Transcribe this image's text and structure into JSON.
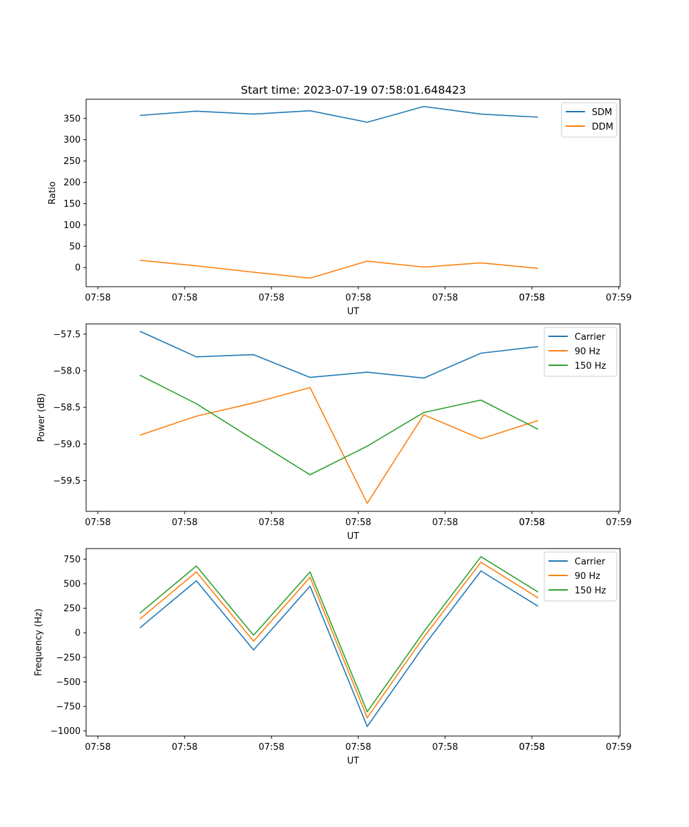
{
  "figure_title": "Start time: 2023-07-19 07:58:01.648423",
  "chart_data": [
    {
      "type": "line",
      "title": "Start time: 2023-07-19 07:58:01.648423",
      "xlabel": "UT",
      "ylabel": "Ratio",
      "x_tick_labels": [
        "07:58",
        "07:58",
        "07:58",
        "07:58",
        "07:58",
        "07:58",
        "07:58",
        "07:59"
      ],
      "y_ticks": [
        0,
        50,
        100,
        150,
        200,
        250,
        300,
        350
      ],
      "y_tick_labels": [
        "0",
        "50",
        "100",
        "150",
        "200",
        "250",
        "300",
        "350"
      ],
      "ylim": [
        -45,
        395
      ],
      "legend_position": "top-right",
      "series": [
        {
          "name": "SDM",
          "color": "#1f77b4",
          "values": [
            357,
            367,
            360,
            368,
            341,
            378,
            360,
            353
          ]
        },
        {
          "name": "DDM",
          "color": "#ff7f0e",
          "values": [
            17,
            4,
            -11,
            -25,
            15,
            1,
            11,
            -2
          ]
        }
      ]
    },
    {
      "type": "line",
      "xlabel": "UT",
      "ylabel": "Power (dB)",
      "x_tick_labels": [
        "07:58",
        "07:58",
        "07:58",
        "07:58",
        "07:58",
        "07:58",
        "07:58",
        "07:59"
      ],
      "y_ticks": [
        -57.5,
        -58.0,
        -58.5,
        -59.0,
        -59.5
      ],
      "y_tick_labels": [
        "−57.5",
        "−58.0",
        "−58.5",
        "−59.0",
        "−59.5"
      ],
      "ylim": [
        -59.92,
        -57.36
      ],
      "legend_position": "top-right",
      "series": [
        {
          "name": "Carrier",
          "color": "#1f77b4",
          "values": [
            -57.46,
            -57.81,
            -57.78,
            -58.09,
            -58.02,
            -58.1,
            -57.76,
            -57.67
          ]
        },
        {
          "name": "90 Hz",
          "color": "#ff7f0e",
          "values": [
            -58.88,
            -58.62,
            -58.44,
            -58.23,
            -59.81,
            -58.6,
            -58.93,
            -58.68
          ]
        },
        {
          "name": "150 Hz",
          "color": "#2ca02c",
          "values": [
            -58.06,
            -58.45,
            -58.94,
            -59.42,
            -59.03,
            -58.57,
            -58.4,
            -58.8
          ]
        }
      ]
    },
    {
      "type": "line",
      "xlabel": "UT",
      "ylabel": "Frequency (Hz)",
      "x_tick_labels": [
        "07:58",
        "07:58",
        "07:58",
        "07:58",
        "07:58",
        "07:58",
        "07:58",
        "07:59"
      ],
      "y_ticks": [
        750,
        500,
        250,
        0,
        -250,
        -500,
        -750,
        -1000
      ],
      "y_tick_labels": [
        "750",
        "500",
        "250",
        "0",
        "−250",
        "−500",
        "−750",
        "−1000"
      ],
      "ylim": [
        -1052,
        858
      ],
      "legend_position": "top-right",
      "series": [
        {
          "name": "Carrier",
          "color": "#1f77b4",
          "values": [
            50,
            530,
            -175,
            475,
            -955,
            -135,
            630,
            270
          ]
        },
        {
          "name": "90 Hz",
          "color": "#ff7f0e",
          "values": [
            140,
            620,
            -85,
            565,
            -865,
            -45,
            720,
            355
          ]
        },
        {
          "name": "150 Hz",
          "color": "#2ca02c",
          "values": [
            200,
            680,
            -25,
            620,
            -805,
            10,
            775,
            415
          ]
        }
      ]
    }
  ]
}
